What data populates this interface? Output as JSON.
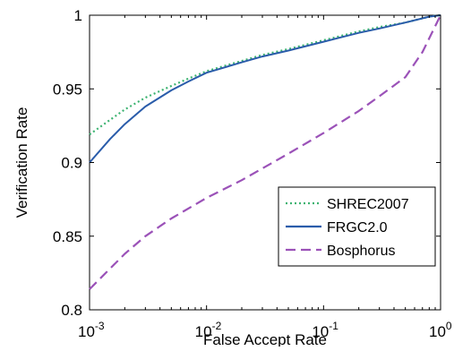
{
  "chart_data": {
    "type": "line",
    "title": "",
    "xlabel": "False Accept Rate",
    "ylabel": "Verification Rate",
    "xscale": "log",
    "xlim": [
      0.001,
      1
    ],
    "ylim": [
      0.8,
      1
    ],
    "grid": false,
    "legend_position": "bottom-right",
    "x_ticks": [
      {
        "value": 0.001,
        "base": "10",
        "exp": "-3"
      },
      {
        "value": 0.01,
        "base": "10",
        "exp": "-2"
      },
      {
        "value": 0.1,
        "base": "10",
        "exp": "-1"
      },
      {
        "value": 1,
        "base": "10",
        "exp": "0"
      }
    ],
    "y_ticks": [
      {
        "value": 0.8,
        "label": "0.8"
      },
      {
        "value": 0.85,
        "label": "0.85"
      },
      {
        "value": 0.9,
        "label": "0.9"
      },
      {
        "value": 0.95,
        "label": "0.95"
      },
      {
        "value": 1,
        "label": "1"
      }
    ],
    "series": [
      {
        "name": "SHREC2007",
        "color": "#3cb371",
        "dash": "dotted",
        "x": [
          0.001,
          0.0015,
          0.002,
          0.003,
          0.005,
          0.007,
          0.01,
          0.02,
          0.03,
          0.05,
          0.1,
          0.2,
          0.3,
          0.5,
          0.8,
          1
        ],
        "y": [
          0.919,
          0.929,
          0.936,
          0.944,
          0.952,
          0.957,
          0.962,
          0.969,
          0.973,
          0.977,
          0.983,
          0.989,
          0.992,
          0.995,
          0.999,
          1.0
        ]
      },
      {
        "name": "FRGC2.0",
        "color": "#2a5caa",
        "dash": "solid",
        "x": [
          0.001,
          0.0015,
          0.002,
          0.003,
          0.005,
          0.007,
          0.01,
          0.02,
          0.03,
          0.05,
          0.1,
          0.2,
          0.3,
          0.5,
          0.8,
          1
        ],
        "y": [
          0.9,
          0.916,
          0.926,
          0.938,
          0.949,
          0.955,
          0.961,
          0.968,
          0.972,
          0.976,
          0.982,
          0.988,
          0.991,
          0.995,
          0.999,
          1.0
        ]
      },
      {
        "name": "Bosphorus",
        "color": "#9b52b8",
        "dash": "dashed",
        "x": [
          0.001,
          0.0015,
          0.002,
          0.003,
          0.005,
          0.01,
          0.02,
          0.03,
          0.05,
          0.1,
          0.2,
          0.3,
          0.5,
          0.7,
          1
        ],
        "y": [
          0.814,
          0.828,
          0.838,
          0.85,
          0.862,
          0.876,
          0.888,
          0.896,
          0.906,
          0.92,
          0.935,
          0.945,
          0.958,
          0.975,
          1.0
        ]
      }
    ]
  }
}
